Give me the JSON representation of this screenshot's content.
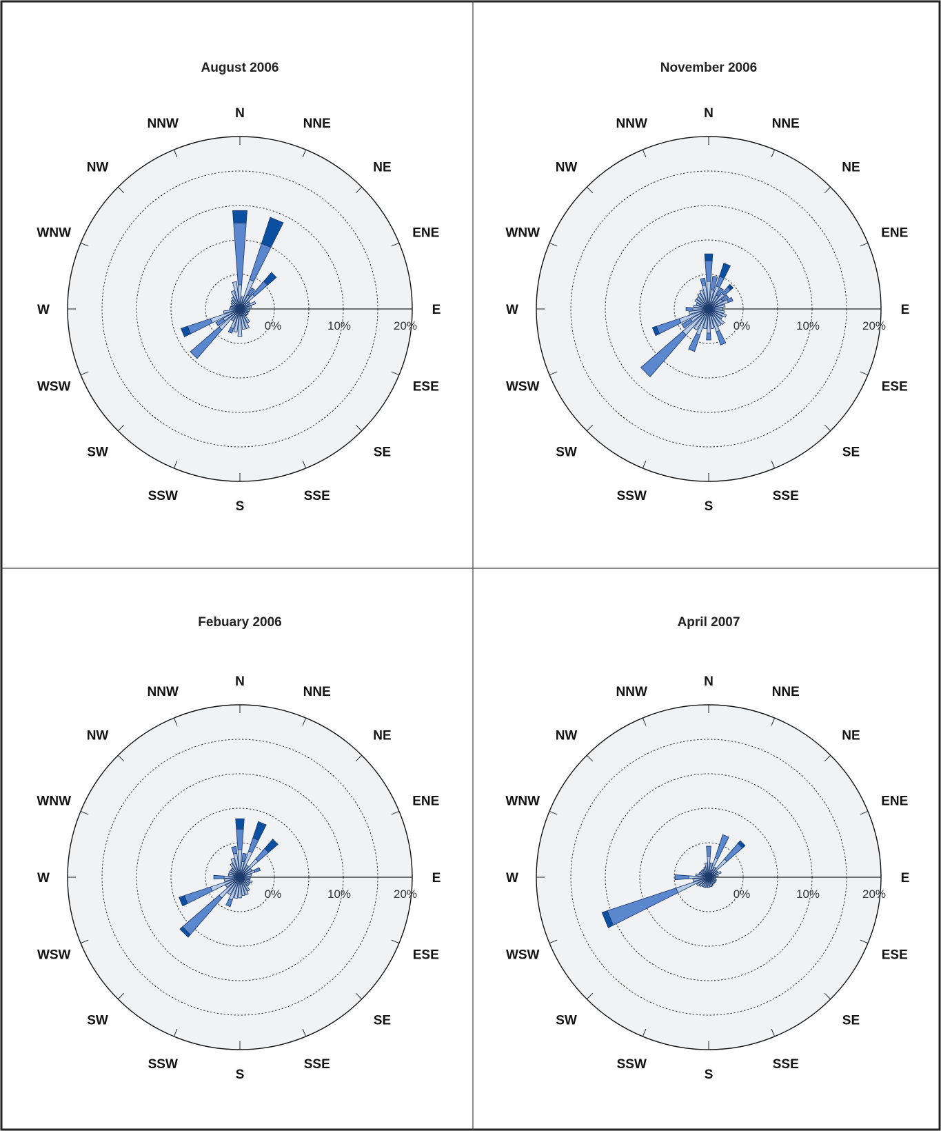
{
  "chart_data": [
    {
      "type": "wind-rose",
      "title": "August 2006",
      "directions": [
        "N",
        "NNE",
        "NE",
        "ENE",
        "E",
        "ESE",
        "SE",
        "SSE",
        "S",
        "SSW",
        "SW",
        "WSW",
        "W",
        "WNW",
        "NW",
        "NNW"
      ],
      "radial_ticks": [
        "0%",
        "10%",
        "20%"
      ],
      "radial_max": 20,
      "sectors": [
        {
          "angle": 0,
          "segments": [
            1.0,
            2.5,
            9.0,
            1.8
          ]
        },
        {
          "angle": 11.25,
          "segments": [
            0.6,
            1.2
          ]
        },
        {
          "angle": 22.5,
          "segments": [
            1.0,
            3.5,
            5.5,
            4.0
          ]
        },
        {
          "angle": 33.75,
          "segments": [
            0.8,
            1.5,
            1.2
          ]
        },
        {
          "angle": 45,
          "segments": [
            0.8,
            2.0,
            2.5,
            1.7
          ]
        },
        {
          "angle": 56.25,
          "segments": [
            0.7,
            1.0
          ]
        },
        {
          "angle": 67.5,
          "segments": [
            0.8,
            1.6
          ]
        },
        {
          "angle": 78.75,
          "segments": [
            0.7,
            1.0
          ]
        },
        {
          "angle": 90,
          "segments": [
            0.5,
            0.9
          ]
        },
        {
          "angle": 101.25,
          "segments": [
            0.5,
            0.9
          ]
        },
        {
          "angle": 112.5,
          "segments": [
            0.5,
            0.8
          ]
        },
        {
          "angle": 123.75,
          "segments": [
            0.6,
            0.8
          ]
        },
        {
          "angle": 135,
          "segments": [
            0.6,
            0.7
          ]
        },
        {
          "angle": 146.25,
          "segments": [
            0.8,
            1.5
          ]
        },
        {
          "angle": 157.5,
          "segments": [
            1.0,
            2.0
          ]
        },
        {
          "angle": 168.75,
          "segments": [
            1.0,
            2.0
          ]
        },
        {
          "angle": 180,
          "segments": [
            1.0,
            3.0
          ]
        },
        {
          "angle": 191.25,
          "segments": [
            0.9,
            2.5
          ]
        },
        {
          "angle": 202.5,
          "segments": [
            1.0,
            2.0,
            0.7
          ]
        },
        {
          "angle": 213.75,
          "segments": [
            0.8,
            1.2
          ]
        },
        {
          "angle": 225,
          "segments": [
            1.0,
            3.0,
            5.5
          ]
        },
        {
          "angle": 236.25,
          "segments": [
            1.0,
            1.8,
            1.2
          ]
        },
        {
          "angle": 247.5,
          "segments": [
            1.0,
            3.5,
            3.5,
            1.0
          ]
        },
        {
          "angle": 258.75,
          "segments": [
            0.9,
            1.5
          ]
        },
        {
          "angle": 270,
          "segments": [
            0.6,
            0.9
          ]
        },
        {
          "angle": 281.25,
          "segments": [
            0.6,
            0.8
          ]
        },
        {
          "angle": 292.5,
          "segments": [
            0.6,
            0.7
          ]
        },
        {
          "angle": 303.75,
          "segments": [
            0.7,
            0.8
          ]
        },
        {
          "angle": 315,
          "segments": [
            0.7,
            1.0
          ]
        },
        {
          "angle": 326.25,
          "segments": [
            0.8,
            1.2
          ]
        },
        {
          "angle": 337.5,
          "segments": [
            0.8,
            2.0
          ]
        },
        {
          "angle": 348.75,
          "segments": [
            1.0,
            3.0
          ]
        }
      ]
    },
    {
      "type": "wind-rose",
      "title": "November 2006",
      "directions": [
        "N",
        "NNE",
        "NE",
        "ENE",
        "E",
        "ESE",
        "SE",
        "SSE",
        "S",
        "SSW",
        "SW",
        "WSW",
        "W",
        "WNW",
        "NW",
        "NNW"
      ],
      "radial_ticks": [
        "0%",
        "10%",
        "20%"
      ],
      "radial_max": 20,
      "sectors": [
        {
          "angle": 0,
          "segments": [
            1.0,
            3.0,
            3.0,
            1.0
          ]
        },
        {
          "angle": 11.25,
          "segments": [
            0.8,
            2.0,
            2.0
          ]
        },
        {
          "angle": 22.5,
          "segments": [
            1.0,
            2.5,
            1.5,
            2.0
          ]
        },
        {
          "angle": 33.75,
          "segments": [
            0.8,
            1.5,
            1.2
          ]
        },
        {
          "angle": 45,
          "segments": [
            1.0,
            2.0,
            1.2,
            0.5
          ]
        },
        {
          "angle": 56.25,
          "segments": [
            0.8,
            1.5,
            1.0
          ]
        },
        {
          "angle": 67.5,
          "segments": [
            1.0,
            2.0,
            0.7
          ]
        },
        {
          "angle": 78.75,
          "segments": [
            0.9,
            1.5
          ]
        },
        {
          "angle": 90,
          "segments": [
            0.7,
            1.3
          ]
        },
        {
          "angle": 101.25,
          "segments": [
            0.8,
            1.5
          ]
        },
        {
          "angle": 112.5,
          "segments": [
            0.9,
            1.8
          ]
        },
        {
          "angle": 123.75,
          "segments": [
            0.8,
            1.5
          ]
        },
        {
          "angle": 135,
          "segments": [
            1.0,
            2.0
          ]
        },
        {
          "angle": 146.25,
          "segments": [
            0.9,
            2.0
          ]
        },
        {
          "angle": 157.5,
          "segments": [
            1.0,
            2.5,
            2.0
          ]
        },
        {
          "angle": 168.75,
          "segments": [
            0.9,
            2.0
          ]
        },
        {
          "angle": 180,
          "segments": [
            1.0,
            2.5,
            1.0
          ]
        },
        {
          "angle": 191.25,
          "segments": [
            0.9,
            2.0
          ]
        },
        {
          "angle": 202.5,
          "segments": [
            1.0,
            3.0,
            2.5
          ]
        },
        {
          "angle": 213.75,
          "segments": [
            1.0,
            2.5
          ]
        },
        {
          "angle": 225,
          "segments": [
            1.0,
            4.0,
            8.0
          ]
        },
        {
          "angle": 236.25,
          "segments": [
            1.0,
            2.0,
            1.5
          ]
        },
        {
          "angle": 247.5,
          "segments": [
            1.0,
            3.5,
            3.5,
            0.6
          ]
        },
        {
          "angle": 258.75,
          "segments": [
            0.9,
            2.0
          ]
        },
        {
          "angle": 270,
          "segments": [
            0.8,
            1.5,
            1.0
          ]
        },
        {
          "angle": 281.25,
          "segments": [
            0.8,
            1.4
          ]
        },
        {
          "angle": 292.5,
          "segments": [
            0.7,
            1.2
          ]
        },
        {
          "angle": 303.75,
          "segments": [
            0.8,
            1.5
          ]
        },
        {
          "angle": 315,
          "segments": [
            0.8,
            1.5
          ]
        },
        {
          "angle": 326.25,
          "segments": [
            0.9,
            1.7
          ]
        },
        {
          "angle": 337.5,
          "segments": [
            0.9,
            2.0
          ]
        },
        {
          "angle": 348.75,
          "segments": [
            1.0,
            2.5,
            1.0
          ]
        }
      ]
    },
    {
      "type": "wind-rose",
      "title": "Febuary 2006",
      "directions": [
        "N",
        "NNE",
        "NE",
        "ENE",
        "E",
        "ESE",
        "SE",
        "SSE",
        "S",
        "SSW",
        "SW",
        "WSW",
        "W",
        "WNW",
        "NW",
        "NNW"
      ],
      "radial_ticks": [
        "0%",
        "10%",
        "20%"
      ],
      "radial_max": 20,
      "sectors": [
        {
          "angle": 0,
          "segments": [
            1.0,
            3.0,
            3.0,
            1.5
          ]
        },
        {
          "angle": 11.25,
          "segments": [
            0.8,
            1.5,
            1.2
          ]
        },
        {
          "angle": 22.5,
          "segments": [
            1.0,
            3.0,
            2.0,
            2.5
          ]
        },
        {
          "angle": 33.75,
          "segments": [
            0.8,
            1.2
          ]
        },
        {
          "angle": 45,
          "segments": [
            1.0,
            2.5,
            2.0,
            1.8
          ]
        },
        {
          "angle": 56.25,
          "segments": [
            0.8,
            1.2
          ]
        },
        {
          "angle": 67.5,
          "segments": [
            0.8,
            1.5,
            0.8
          ]
        },
        {
          "angle": 78.75,
          "segments": [
            0.7,
            1.0
          ]
        },
        {
          "angle": 90,
          "segments": [
            0.6,
            0.9
          ]
        },
        {
          "angle": 101.25,
          "segments": [
            0.6,
            0.9
          ]
        },
        {
          "angle": 112.5,
          "segments": [
            0.7,
            1.2
          ]
        },
        {
          "angle": 123.75,
          "segments": [
            0.7,
            1.0
          ]
        },
        {
          "angle": 135,
          "segments": [
            0.7,
            1.0
          ]
        },
        {
          "angle": 146.25,
          "segments": [
            0.8,
            1.5
          ]
        },
        {
          "angle": 157.5,
          "segments": [
            0.9,
            1.8
          ]
        },
        {
          "angle": 168.75,
          "segments": [
            0.9,
            1.8
          ]
        },
        {
          "angle": 180,
          "segments": [
            1.0,
            2.0
          ]
        },
        {
          "angle": 191.25,
          "segments": [
            0.9,
            2.2
          ]
        },
        {
          "angle": 202.5,
          "segments": [
            1.0,
            2.5,
            1.0
          ]
        },
        {
          "angle": 213.75,
          "segments": [
            0.9,
            2.0
          ]
        },
        {
          "angle": 225,
          "segments": [
            1.0,
            3.0,
            7.0,
            0.5
          ]
        },
        {
          "angle": 236.25,
          "segments": [
            0.9,
            1.5
          ]
        },
        {
          "angle": 247.5,
          "segments": [
            1.0,
            3.5,
            4.0,
            0.8
          ]
        },
        {
          "angle": 258.75,
          "segments": [
            0.8,
            1.5
          ]
        },
        {
          "angle": 270,
          "segments": [
            0.8,
            1.5,
            1.5
          ]
        },
        {
          "angle": 281.25,
          "segments": [
            0.7,
            1.0
          ]
        },
        {
          "angle": 292.5,
          "segments": [
            0.7,
            1.0
          ]
        },
        {
          "angle": 303.75,
          "segments": [
            0.7,
            1.0
          ]
        },
        {
          "angle": 315,
          "segments": [
            0.7,
            1.0
          ]
        },
        {
          "angle": 326.25,
          "segments": [
            0.8,
            1.5
          ]
        },
        {
          "angle": 337.5,
          "segments": [
            0.9,
            2.0
          ]
        },
        {
          "angle": 348.75,
          "segments": [
            1.0,
            2.5,
            1.0
          ]
        }
      ]
    },
    {
      "type": "wind-rose",
      "title": "April 2007",
      "directions": [
        "N",
        "NNE",
        "NE",
        "ENE",
        "E",
        "ESE",
        "SE",
        "SSE",
        "S",
        "SSW",
        "SW",
        "WSW",
        "W",
        "WNW",
        "NW",
        "NNW"
      ],
      "radial_ticks": [
        "0%",
        "10%",
        "20%"
      ],
      "radial_max": 20,
      "sectors": [
        {
          "angle": 0,
          "segments": [
            1.0,
            2.0,
            1.5
          ]
        },
        {
          "angle": 11.25,
          "segments": [
            0.8,
            1.3
          ]
        },
        {
          "angle": 22.5,
          "segments": [
            1.0,
            2.0,
            3.5
          ]
        },
        {
          "angle": 33.75,
          "segments": [
            0.7,
            1.0
          ]
        },
        {
          "angle": 45,
          "segments": [
            1.0,
            2.5,
            3.0,
            0.5
          ]
        },
        {
          "angle": 56.25,
          "segments": [
            0.6,
            0.9
          ]
        },
        {
          "angle": 67.5,
          "segments": [
            0.7,
            1.2
          ]
        },
        {
          "angle": 78.75,
          "segments": [
            0.6,
            0.8
          ]
        },
        {
          "angle": 90,
          "segments": [
            0.4,
            0.6
          ]
        },
        {
          "angle": 101.25,
          "segments": [
            0.4,
            0.6
          ]
        },
        {
          "angle": 112.5,
          "segments": [
            0.5,
            0.7
          ]
        },
        {
          "angle": 123.75,
          "segments": [
            0.5,
            0.7
          ]
        },
        {
          "angle": 135,
          "segments": [
            0.5,
            0.7
          ]
        },
        {
          "angle": 146.25,
          "segments": [
            0.5,
            0.7
          ]
        },
        {
          "angle": 157.5,
          "segments": [
            0.6,
            0.8
          ]
        },
        {
          "angle": 168.75,
          "segments": [
            0.6,
            0.8
          ]
        },
        {
          "angle": 180,
          "segments": [
            0.6,
            0.9
          ]
        },
        {
          "angle": 191.25,
          "segments": [
            0.6,
            0.9
          ]
        },
        {
          "angle": 202.5,
          "segments": [
            0.6,
            1.0
          ]
        },
        {
          "angle": 213.75,
          "segments": [
            0.6,
            1.0
          ]
        },
        {
          "angle": 225,
          "segments": [
            0.6,
            1.2
          ]
        },
        {
          "angle": 236.25,
          "segments": [
            0.7,
            1.3
          ]
        },
        {
          "angle": 247.5,
          "segments": [
            1.0,
            4.0,
            10.5,
            0.8
          ]
        },
        {
          "angle": 258.75,
          "segments": [
            0.8,
            1.5
          ]
        },
        {
          "angle": 270,
          "segments": [
            0.9,
            2.0,
            2.0
          ]
        },
        {
          "angle": 281.25,
          "segments": [
            0.7,
            1.2
          ]
        },
        {
          "angle": 292.5,
          "segments": [
            0.6,
            0.9
          ]
        },
        {
          "angle": 303.75,
          "segments": [
            0.6,
            0.8
          ]
        },
        {
          "angle": 315,
          "segments": [
            0.6,
            0.8
          ]
        },
        {
          "angle": 326.25,
          "segments": [
            0.6,
            0.8
          ]
        },
        {
          "angle": 337.5,
          "segments": [
            0.6,
            1.0
          ]
        },
        {
          "angle": 348.75,
          "segments": [
            0.8,
            1.3
          ]
        }
      ]
    }
  ],
  "colors": {
    "panel_bg": "#ffffff",
    "disc_bg": "#f1f2f4",
    "border": "#222222",
    "segments": [
      "#d9e2f2",
      "#b8cdea",
      "#5b87cf",
      "#0b4fa0"
    ]
  }
}
